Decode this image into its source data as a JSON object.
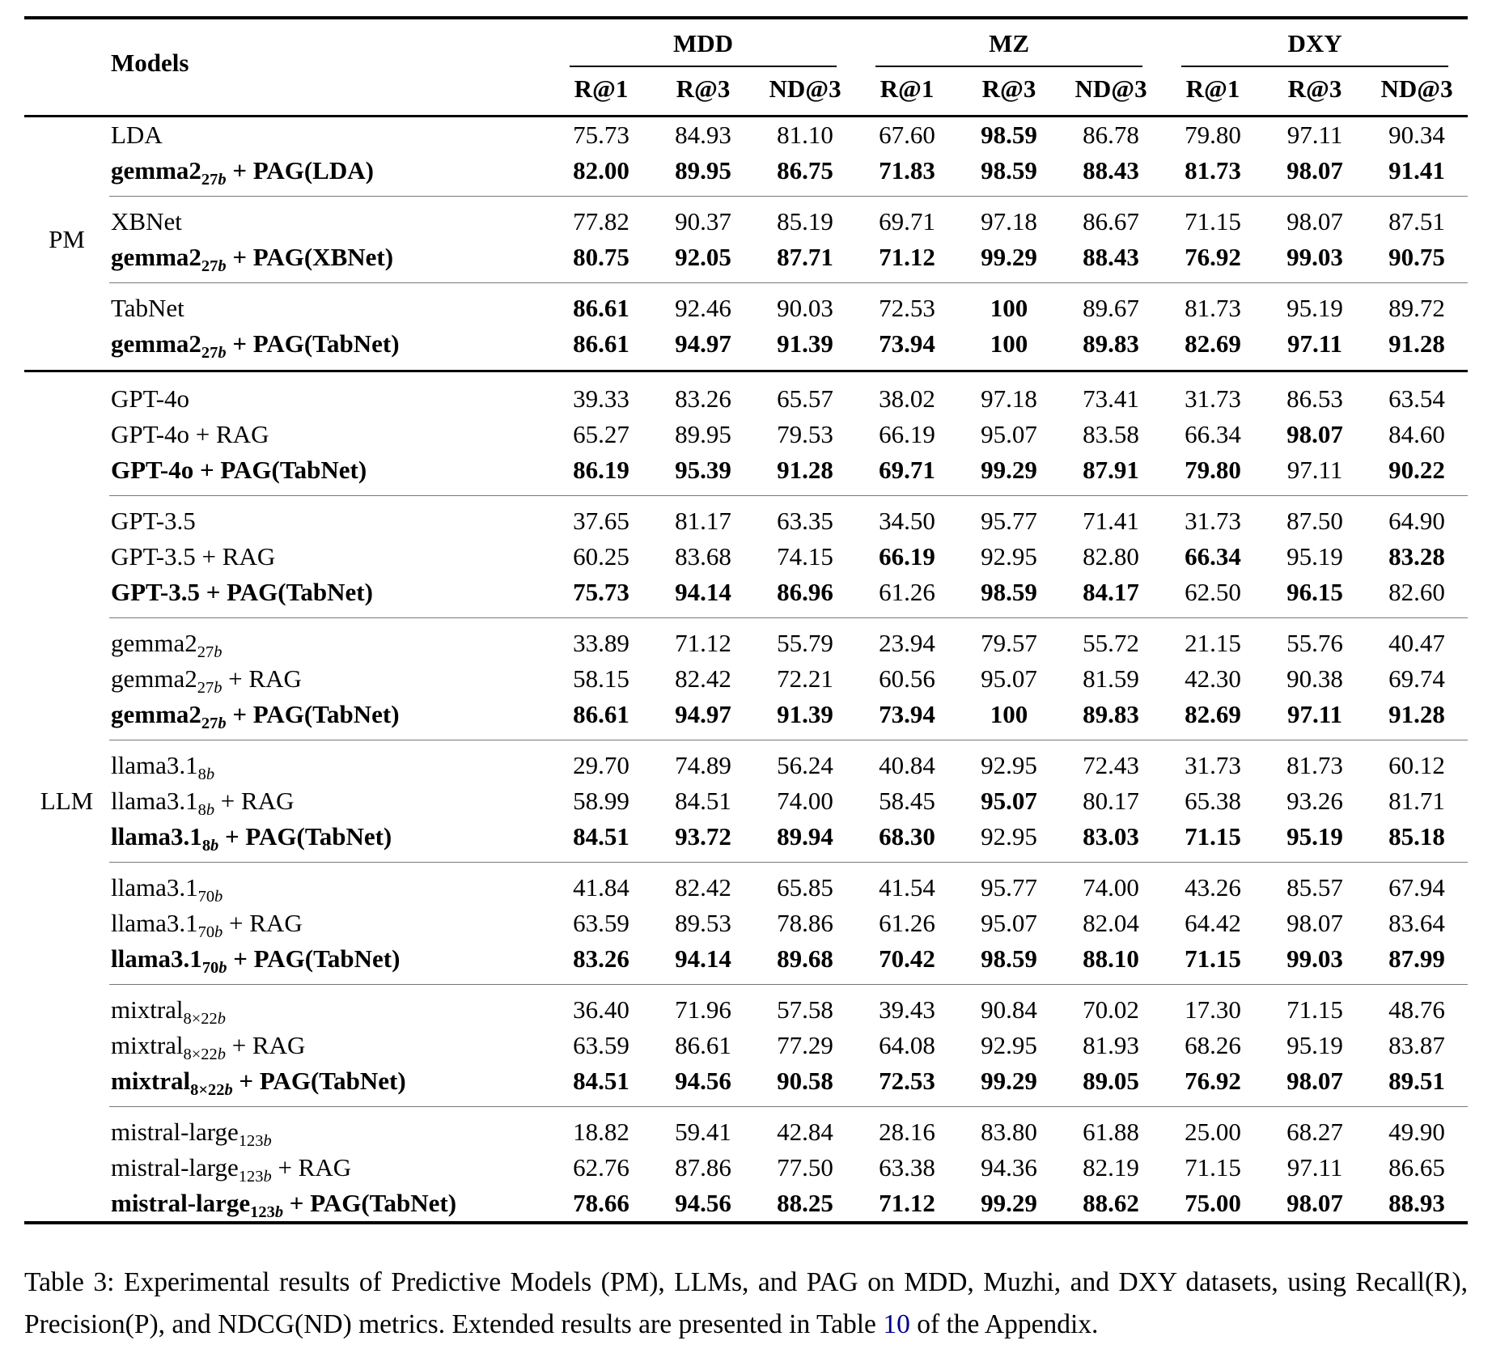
{
  "colors": {
    "link": "#00008B",
    "main_rule": "#000000",
    "sub_rule": "#777777"
  },
  "table": {
    "models_header": "Models",
    "column_groups": [
      "MDD",
      "MZ",
      "DXY"
    ],
    "metrics": [
      "R@1",
      "R@3",
      "ND@3"
    ],
    "groups": [
      {
        "label": "PM",
        "subgroups": [
          [
            {
              "m": [
                "LDA",
                "",
                ""
              ],
              "bn": 0,
              "v": [
                "75.73",
                "84.93",
                "81.10",
                "67.60",
                "98.59",
                "86.78",
                "79.80",
                "97.11",
                "90.34"
              ],
              "b": [
                0,
                0,
                0,
                0,
                1,
                0,
                0,
                0,
                0
              ]
            },
            {
              "m": [
                "gemma2",
                "27b",
                " + PAG(LDA)"
              ],
              "bn": 1,
              "v": [
                "82.00",
                "89.95",
                "86.75",
                "71.83",
                "98.59",
                "88.43",
                "81.73",
                "98.07",
                "91.41"
              ],
              "b": [
                1,
                1,
                1,
                1,
                1,
                1,
                1,
                1,
                1
              ]
            }
          ],
          [
            {
              "m": [
                "XBNet",
                "",
                ""
              ],
              "bn": 0,
              "v": [
                "77.82",
                "90.37",
                "85.19",
                "69.71",
                "97.18",
                "86.67",
                "71.15",
                "98.07",
                "87.51"
              ],
              "b": [
                0,
                0,
                0,
                0,
                0,
                0,
                0,
                0,
                0
              ]
            },
            {
              "m": [
                "gemma2",
                "27b",
                " + PAG(XBNet)"
              ],
              "bn": 1,
              "v": [
                "80.75",
                "92.05",
                "87.71",
                "71.12",
                "99.29",
                "88.43",
                "76.92",
                "99.03",
                "90.75"
              ],
              "b": [
                1,
                1,
                1,
                1,
                1,
                1,
                1,
                1,
                1
              ]
            }
          ],
          [
            {
              "m": [
                "TabNet",
                "",
                ""
              ],
              "bn": 0,
              "v": [
                "86.61",
                "92.46",
                "90.03",
                "72.53",
                "100",
                "89.67",
                "81.73",
                "95.19",
                "89.72"
              ],
              "b": [
                1,
                0,
                0,
                0,
                1,
                0,
                0,
                0,
                0
              ]
            },
            {
              "m": [
                "gemma2",
                "27b",
                " + PAG(TabNet)"
              ],
              "bn": 1,
              "v": [
                "86.61",
                "94.97",
                "91.39",
                "73.94",
                "100",
                "89.83",
                "82.69",
                "97.11",
                "91.28"
              ],
              "b": [
                1,
                1,
                1,
                1,
                1,
                1,
                1,
                1,
                1
              ]
            }
          ]
        ]
      },
      {
        "label": "LLM",
        "subgroups": [
          [
            {
              "m": [
                "GPT-4o",
                "",
                ""
              ],
              "bn": 0,
              "v": [
                "39.33",
                "83.26",
                "65.57",
                "38.02",
                "97.18",
                "73.41",
                "31.73",
                "86.53",
                "63.54"
              ],
              "b": [
                0,
                0,
                0,
                0,
                0,
                0,
                0,
                0,
                0
              ]
            },
            {
              "m": [
                "GPT-4o",
                "",
                " + RAG"
              ],
              "bn": 0,
              "v": [
                "65.27",
                "89.95",
                "79.53",
                "66.19",
                "95.07",
                "83.58",
                "66.34",
                "98.07",
                "84.60"
              ],
              "b": [
                0,
                0,
                0,
                0,
                0,
                0,
                0,
                1,
                0
              ]
            },
            {
              "m": [
                "GPT-4o",
                "",
                " + PAG(TabNet)"
              ],
              "bn": 1,
              "v": [
                "86.19",
                "95.39",
                "91.28",
                "69.71",
                "99.29",
                "87.91",
                "79.80",
                "97.11",
                "90.22"
              ],
              "b": [
                1,
                1,
                1,
                1,
                1,
                1,
                1,
                0,
                1
              ]
            }
          ],
          [
            {
              "m": [
                "GPT-3.5",
                "",
                ""
              ],
              "bn": 0,
              "v": [
                "37.65",
                "81.17",
                "63.35",
                "34.50",
                "95.77",
                "71.41",
                "31.73",
                "87.50",
                "64.90"
              ],
              "b": [
                0,
                0,
                0,
                0,
                0,
                0,
                0,
                0,
                0
              ]
            },
            {
              "m": [
                "GPT-3.5",
                "",
                " + RAG"
              ],
              "bn": 0,
              "v": [
                "60.25",
                "83.68",
                "74.15",
                "66.19",
                "92.95",
                "82.80",
                "66.34",
                "95.19",
                "83.28"
              ],
              "b": [
                0,
                0,
                0,
                1,
                0,
                0,
                1,
                0,
                1
              ]
            },
            {
              "m": [
                "GPT-3.5",
                "",
                " + PAG(TabNet)"
              ],
              "bn": 1,
              "v": [
                "75.73",
                "94.14",
                "86.96",
                "61.26",
                "98.59",
                "84.17",
                "62.50",
                "96.15",
                "82.60"
              ],
              "b": [
                1,
                1,
                1,
                0,
                1,
                1,
                0,
                1,
                0
              ]
            }
          ],
          [
            {
              "m": [
                "gemma2",
                "27b",
                ""
              ],
              "bn": 0,
              "v": [
                "33.89",
                "71.12",
                "55.79",
                "23.94",
                "79.57",
                "55.72",
                "21.15",
                "55.76",
                "40.47"
              ],
              "b": [
                0,
                0,
                0,
                0,
                0,
                0,
                0,
                0,
                0
              ]
            },
            {
              "m": [
                "gemma2",
                "27b",
                " + RAG"
              ],
              "bn": 0,
              "v": [
                "58.15",
                "82.42",
                "72.21",
                "60.56",
                "95.07",
                "81.59",
                "42.30",
                "90.38",
                "69.74"
              ],
              "b": [
                0,
                0,
                0,
                0,
                0,
                0,
                0,
                0,
                0
              ]
            },
            {
              "m": [
                "gemma2",
                "27b",
                " + PAG(TabNet)"
              ],
              "bn": 1,
              "v": [
                "86.61",
                "94.97",
                "91.39",
                "73.94",
                "100",
                "89.83",
                "82.69",
                "97.11",
                "91.28"
              ],
              "b": [
                1,
                1,
                1,
                1,
                1,
                1,
                1,
                1,
                1
              ]
            }
          ],
          [
            {
              "m": [
                "llama3.1",
                "8b",
                ""
              ],
              "bn": 0,
              "v": [
                "29.70",
                "74.89",
                "56.24",
                "40.84",
                "92.95",
                "72.43",
                "31.73",
                "81.73",
                "60.12"
              ],
              "b": [
                0,
                0,
                0,
                0,
                0,
                0,
                0,
                0,
                0
              ]
            },
            {
              "m": [
                "llama3.1",
                "8b",
                " + RAG"
              ],
              "bn": 0,
              "v": [
                "58.99",
                "84.51",
                "74.00",
                "58.45",
                "95.07",
                "80.17",
                "65.38",
                "93.26",
                "81.71"
              ],
              "b": [
                0,
                0,
                0,
                0,
                1,
                0,
                0,
                0,
                0
              ]
            },
            {
              "m": [
                "llama3.1",
                "8b",
                " + PAG(TabNet)"
              ],
              "bn": 1,
              "v": [
                "84.51",
                "93.72",
                "89.94",
                "68.30",
                "92.95",
                "83.03",
                "71.15",
                "95.19",
                "85.18"
              ],
              "b": [
                1,
                1,
                1,
                1,
                0,
                1,
                1,
                1,
                1
              ]
            }
          ],
          [
            {
              "m": [
                "llama3.1",
                "70b",
                ""
              ],
              "bn": 0,
              "v": [
                "41.84",
                "82.42",
                "65.85",
                "41.54",
                "95.77",
                "74.00",
                "43.26",
                "85.57",
                "67.94"
              ],
              "b": [
                0,
                0,
                0,
                0,
                0,
                0,
                0,
                0,
                0
              ]
            },
            {
              "m": [
                "llama3.1",
                "70b",
                " + RAG"
              ],
              "bn": 0,
              "v": [
                "63.59",
                "89.53",
                "78.86",
                "61.26",
                "95.07",
                "82.04",
                "64.42",
                "98.07",
                "83.64"
              ],
              "b": [
                0,
                0,
                0,
                0,
                0,
                0,
                0,
                0,
                0
              ]
            },
            {
              "m": [
                "llama3.1",
                "70b",
                " + PAG(TabNet)"
              ],
              "bn": 1,
              "v": [
                "83.26",
                "94.14",
                "89.68",
                "70.42",
                "98.59",
                "88.10",
                "71.15",
                "99.03",
                "87.99"
              ],
              "b": [
                1,
                1,
                1,
                1,
                1,
                1,
                1,
                1,
                1
              ]
            }
          ],
          [
            {
              "m": [
                "mixtral",
                "8×22b",
                ""
              ],
              "bn": 0,
              "v": [
                "36.40",
                "71.96",
                "57.58",
                "39.43",
                "90.84",
                "70.02",
                "17.30",
                "71.15",
                "48.76"
              ],
              "b": [
                0,
                0,
                0,
                0,
                0,
                0,
                0,
                0,
                0
              ]
            },
            {
              "m": [
                "mixtral",
                "8×22b",
                " + RAG"
              ],
              "bn": 0,
              "v": [
                "63.59",
                "86.61",
                "77.29",
                "64.08",
                "92.95",
                "81.93",
                "68.26",
                "95.19",
                "83.87"
              ],
              "b": [
                0,
                0,
                0,
                0,
                0,
                0,
                0,
                0,
                0
              ]
            },
            {
              "m": [
                "mixtral",
                "8×22b",
                " + PAG(TabNet)"
              ],
              "bn": 1,
              "v": [
                "84.51",
                "94.56",
                "90.58",
                "72.53",
                "99.29",
                "89.05",
                "76.92",
                "98.07",
                "89.51"
              ],
              "b": [
                1,
                1,
                1,
                1,
                1,
                1,
                1,
                1,
                1
              ]
            }
          ],
          [
            {
              "m": [
                "mistral-large",
                "123b",
                ""
              ],
              "bn": 0,
              "v": [
                "18.82",
                "59.41",
                "42.84",
                "28.16",
                "83.80",
                "61.88",
                "25.00",
                "68.27",
                "49.90"
              ],
              "b": [
                0,
                0,
                0,
                0,
                0,
                0,
                0,
                0,
                0
              ]
            },
            {
              "m": [
                "mistral-large",
                "123b",
                " + RAG"
              ],
              "bn": 0,
              "v": [
                "62.76",
                "87.86",
                "77.50",
                "63.38",
                "94.36",
                "82.19",
                "71.15",
                "97.11",
                "86.65"
              ],
              "b": [
                0,
                0,
                0,
                0,
                0,
                0,
                0,
                0,
                0
              ]
            },
            {
              "m": [
                "mistral-large",
                "123b",
                " + PAG(TabNet)"
              ],
              "bn": 1,
              "v": [
                "78.66",
                "94.56",
                "88.25",
                "71.12",
                "99.29",
                "88.62",
                "75.00",
                "98.07",
                "88.93"
              ],
              "b": [
                1,
                1,
                1,
                1,
                1,
                1,
                1,
                1,
                1
              ]
            }
          ]
        ]
      }
    ]
  },
  "caption": {
    "text_before_link": "Table 3: Experimental results of Predictive Models (PM), LLMs, and PAG on MDD, Muzhi, and DXY datasets, using Recall(R), Precision(P), and NDCG(ND) metrics. Extended results are presented in Table ",
    "link_text": "10",
    "text_after_link": " of the Appendix."
  }
}
